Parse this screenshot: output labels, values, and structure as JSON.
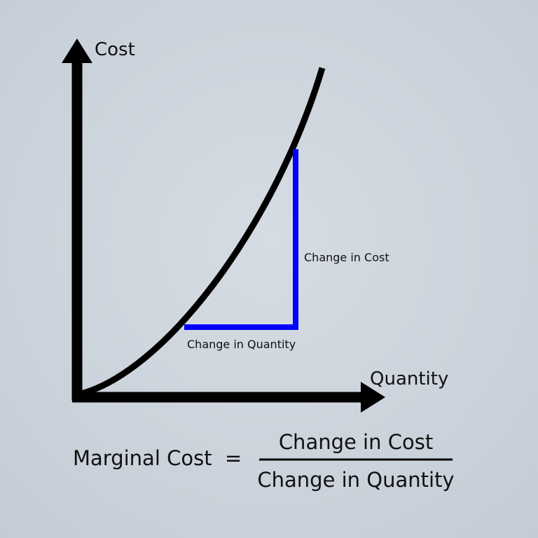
{
  "axes": {
    "y_label": "Cost",
    "x_label": "Quantity"
  },
  "annotations": {
    "change_in_cost": "Change in Cost",
    "change_in_quantity": "Change in Quantity"
  },
  "formula": {
    "lhs": "Marginal Cost",
    "equals": "=",
    "numerator": "Change in Cost",
    "denominator": "Change in Quantity"
  }
}
